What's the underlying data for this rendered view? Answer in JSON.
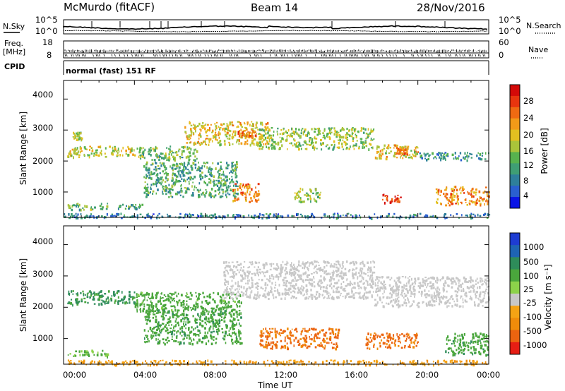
{
  "header": {
    "station": "McMurdo (fitACF)",
    "beam": "Beam 14",
    "date": "28/Nov/2016"
  },
  "top_panel": {
    "nsky_label": "N.Sky",
    "nsearch_label": "N.Search",
    "noise_top": "10^5",
    "noise_bottom": "10^0",
    "noise_top_right": "10^5",
    "noise_bottom_right": "10^0",
    "freq_label_1": "Freq.",
    "freq_label_2": "[MHz]",
    "freq_top": "18",
    "freq_bottom": "8",
    "nave_label": "Nave",
    "nave_top": "60",
    "nave_bottom": "0",
    "cpid_label": "CPID",
    "cpid_text": "normal (fast) 151 RF"
  },
  "chart_data": [
    {
      "type": "heatmap",
      "title": "",
      "ylabel": "Slant Range [km]",
      "xlabel": "",
      "ylim": [
        180,
        4600
      ],
      "xlim": [
        0,
        24
      ],
      "yticks": [
        "1000",
        "2000",
        "3000",
        "4000"
      ],
      "colorbar": {
        "label": "Power [dB]",
        "ticks": [
          "4",
          "8",
          "12",
          "16",
          "20",
          "24",
          "28"
        ],
        "range": [
          0,
          30
        ],
        "colors": [
          "#0a14e6",
          "#2a5fd0",
          "#2e7f9b",
          "#3f9e74",
          "#57b24e",
          "#aac43a",
          "#e2c020",
          "#f29a18",
          "#ef6a12",
          "#e8350e",
          "#d40a08"
        ]
      },
      "echo_regions": [
        {
          "t": [
            0.2,
            4.0
          ],
          "r": [
            2150,
            2500
          ],
          "v": 16
        },
        {
          "t": [
            0.5,
            1.0
          ],
          "r": [
            2700,
            2950
          ],
          "v": 14
        },
        {
          "t": [
            4.0,
            7.5
          ],
          "r": [
            2050,
            2500
          ],
          "v": 12
        },
        {
          "t": [
            6.8,
            11.5
          ],
          "r": [
            2550,
            3300
          ],
          "v": 18
        },
        {
          "t": [
            9.8,
            10.8
          ],
          "r": [
            2800,
            3000
          ],
          "v": 24
        },
        {
          "t": [
            11.0,
            17.5
          ],
          "r": [
            2400,
            3100
          ],
          "v": 14
        },
        {
          "t": [
            17.5,
            20.0
          ],
          "r": [
            2100,
            2550
          ],
          "v": 18
        },
        {
          "t": [
            18.7,
            19.5
          ],
          "r": [
            2250,
            2500
          ],
          "v": 24
        },
        {
          "t": [
            20.0,
            24.0
          ],
          "r": [
            2050,
            2300
          ],
          "v": 8
        },
        {
          "t": [
            4.5,
            9.8
          ],
          "r": [
            850,
            2000
          ],
          "v": 10
        },
        {
          "t": [
            9.5,
            11.0
          ],
          "r": [
            700,
            1300
          ],
          "v": 22
        },
        {
          "t": [
            13.0,
            14.5
          ],
          "r": [
            700,
            1150
          ],
          "v": 14
        },
        {
          "t": [
            17.8,
            19.0
          ],
          "r": [
            650,
            950
          ],
          "v": 28
        },
        {
          "t": [
            21.0,
            24.0
          ],
          "r": [
            600,
            1200
          ],
          "v": 22
        },
        {
          "t": [
            0.2,
            2.5
          ],
          "r": [
            450,
            650
          ],
          "v": 12
        },
        {
          "t": [
            3.0,
            4.5
          ],
          "r": [
            480,
            620
          ],
          "v": 10
        },
        {
          "t": [
            0.0,
            24.0
          ],
          "r": [
            180,
            330
          ],
          "v": 6
        }
      ]
    },
    {
      "type": "heatmap",
      "title": "",
      "ylabel": "Slant Range [km]",
      "xlabel": "Time UT",
      "ylim": [
        180,
        4600
      ],
      "xlim": [
        0,
        24
      ],
      "xticks": [
        "00:00",
        "04:00",
        "08:00",
        "12:00",
        "16:00",
        "20:00",
        "00:00"
      ],
      "yticks": [
        "1000",
        "2000",
        "3000",
        "4000"
      ],
      "colorbar": {
        "label": "Velocity [m s⁻¹]",
        "ticks": [
          "1000",
          "500",
          "100",
          "25",
          "-25",
          "-100",
          "-500",
          "-1000"
        ],
        "colors": [
          "#1e3cd2",
          "#1e64b4",
          "#2e8c5a",
          "#4aa63c",
          "#8cd24a",
          "#c8c8c8",
          "#f5a314",
          "#f08c0a",
          "#eb6410",
          "#e61e14"
        ]
      },
      "echo_regions": [
        {
          "t": [
            0.2,
            4.0
          ],
          "r": [
            2100,
            2550
          ],
          "v": 300
        },
        {
          "t": [
            4.0,
            10.0
          ],
          "r": [
            1900,
            2500
          ],
          "v": 150
        },
        {
          "t": [
            4.5,
            10.0
          ],
          "r": [
            850,
            1950
          ],
          "v": 200
        },
        {
          "t": [
            9.0,
            17.5
          ],
          "r": [
            2300,
            3500
          ],
          "v": 0
        },
        {
          "t": [
            17.5,
            24.0
          ],
          "r": [
            2050,
            3000
          ],
          "v": 0
        },
        {
          "t": [
            11.0,
            15.5
          ],
          "r": [
            700,
            1350
          ],
          "v": -300
        },
        {
          "t": [
            17.0,
            20.0
          ],
          "r": [
            700,
            1200
          ],
          "v": -300
        },
        {
          "t": [
            21.5,
            24.0
          ],
          "r": [
            500,
            1200
          ],
          "v": 200
        },
        {
          "t": [
            0.2,
            2.5
          ],
          "r": [
            450,
            650
          ],
          "v": 120
        },
        {
          "t": [
            0.0,
            24.0
          ],
          "r": [
            180,
            330
          ],
          "v": -80
        }
      ]
    }
  ]
}
